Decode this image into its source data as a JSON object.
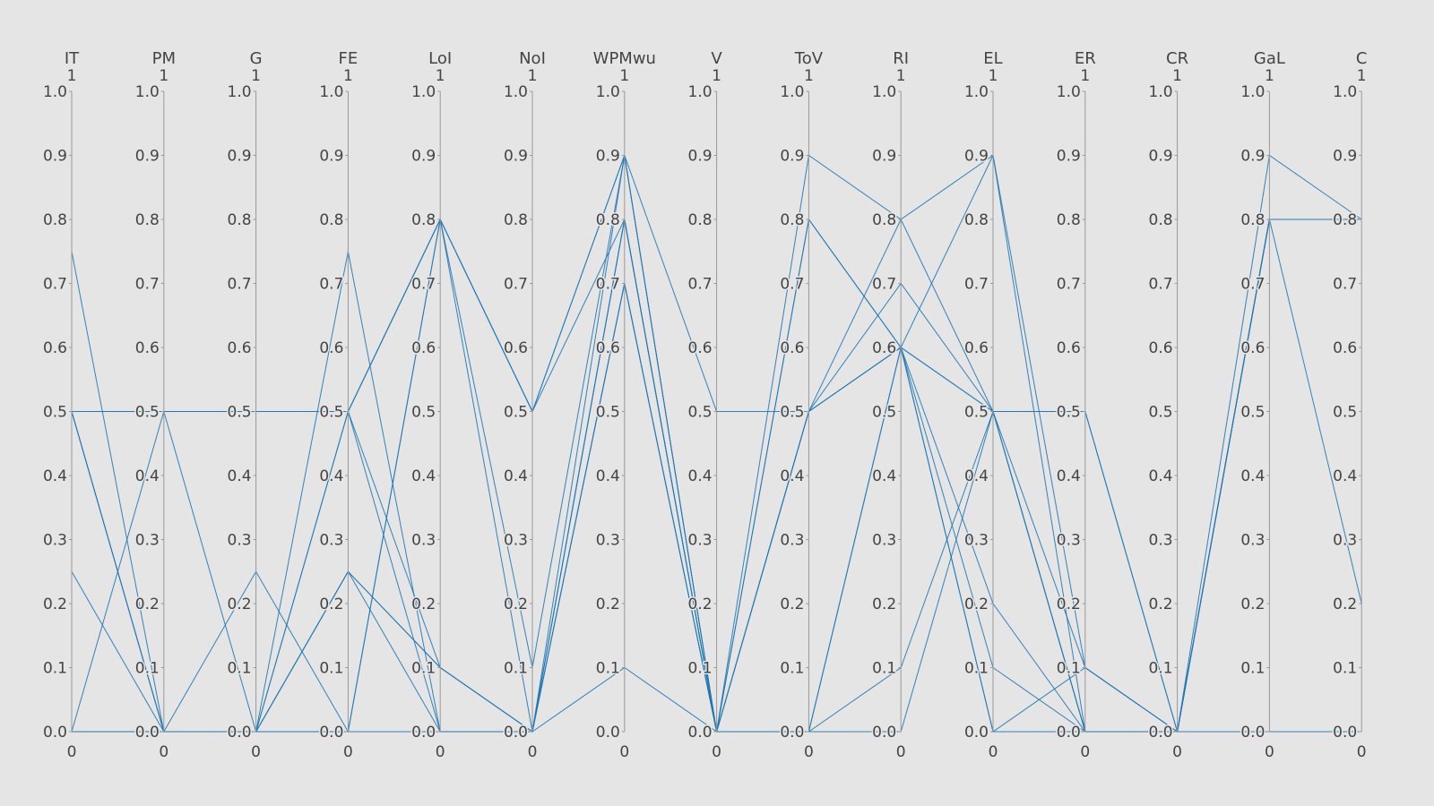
{
  "chart_data": {
    "type": "parallel-coordinates",
    "line_color": "#1f77b4",
    "dimensions": [
      {
        "label": "IT",
        "range_top": "1",
        "range_bottom": "0"
      },
      {
        "label": "PM",
        "range_top": "1",
        "range_bottom": "0"
      },
      {
        "label": "G",
        "range_top": "1",
        "range_bottom": "0"
      },
      {
        "label": "FE",
        "range_top": "1",
        "range_bottom": "0"
      },
      {
        "label": "LoI",
        "range_top": "1",
        "range_bottom": "0"
      },
      {
        "label": "NoI",
        "range_top": "1",
        "range_bottom": "0"
      },
      {
        "label": "WPMwu",
        "range_top": "1",
        "range_bottom": "0"
      },
      {
        "label": "V",
        "range_top": "1",
        "range_bottom": "0"
      },
      {
        "label": "ToV",
        "range_top": "1",
        "range_bottom": "0"
      },
      {
        "label": "RI",
        "range_top": "1",
        "range_bottom": "0"
      },
      {
        "label": "EL",
        "range_top": "1",
        "range_bottom": "0"
      },
      {
        "label": "ER",
        "range_top": "1",
        "range_bottom": "0"
      },
      {
        "label": "CR",
        "range_top": "1",
        "range_bottom": "0"
      },
      {
        "label": "GaL",
        "range_top": "1",
        "range_bottom": "0"
      },
      {
        "label": "C",
        "range_top": "1",
        "range_bottom": "0"
      }
    ],
    "ticks": [
      "0.0",
      "0.1",
      "0.2",
      "0.3",
      "0.4",
      "0.5",
      "0.6",
      "0.7",
      "0.8",
      "0.9",
      "1.0"
    ],
    "ylim": [
      0,
      1
    ],
    "records": [
      [
        0.5,
        0.5,
        0.5,
        0.5,
        0.8,
        0.5,
        0.9,
        0.5,
        0.5,
        0.6,
        0.5,
        0.5,
        0,
        0.8,
        0.8
      ],
      [
        0.5,
        0.5,
        0.5,
        0.5,
        0.1,
        0,
        0.8,
        0,
        0.9,
        0.8,
        0.9,
        0,
        0,
        0.9,
        0.8
      ],
      [
        0.75,
        0,
        0,
        0.25,
        0,
        0,
        0.7,
        0,
        0.8,
        0.6,
        0.2,
        0,
        0,
        0.8,
        0.8
      ],
      [
        0.25,
        0,
        0,
        0.5,
        0.8,
        0.1,
        0.9,
        0,
        0.5,
        0.7,
        0.5,
        0.1,
        0,
        0.8,
        0.2
      ],
      [
        0,
        0.5,
        0,
        0.25,
        0.1,
        0,
        0.8,
        0,
        0,
        0,
        0.5,
        0.5,
        0,
        0.8,
        0.8
      ],
      [
        0.5,
        0,
        0.25,
        0,
        0.8,
        0.5,
        0.8,
        0,
        0.5,
        0.6,
        0.9,
        0.1,
        0,
        0.8,
        0.8
      ],
      [
        0,
        0,
        0,
        0.75,
        0,
        0,
        0.1,
        0,
        0,
        0.1,
        0.5,
        0,
        0,
        0.8,
        0.8
      ],
      [
        0,
        0,
        0,
        0,
        0.8,
        0,
        0.7,
        0,
        0.5,
        0.8,
        0.5,
        0,
        0,
        0.8,
        0.8
      ],
      [
        0.5,
        0.5,
        0.5,
        0.5,
        0,
        0,
        0.9,
        0,
        0,
        0.6,
        0.1,
        0,
        0,
        0,
        0
      ],
      [
        0,
        0,
        0,
        0,
        0,
        0,
        0.8,
        0,
        0.8,
        0.6,
        0,
        0.1,
        0,
        0.8,
        0.8
      ],
      [
        0.5,
        0,
        0,
        0.25,
        0.1,
        0,
        0.7,
        0,
        0.5,
        0.6,
        0,
        0,
        0,
        0.8,
        0.8
      ],
      [
        0.5,
        0,
        0,
        0.5,
        0.8,
        0.5,
        0.9,
        0,
        0,
        0.6,
        0.5,
        0,
        0,
        0.8,
        0.8
      ]
    ]
  }
}
